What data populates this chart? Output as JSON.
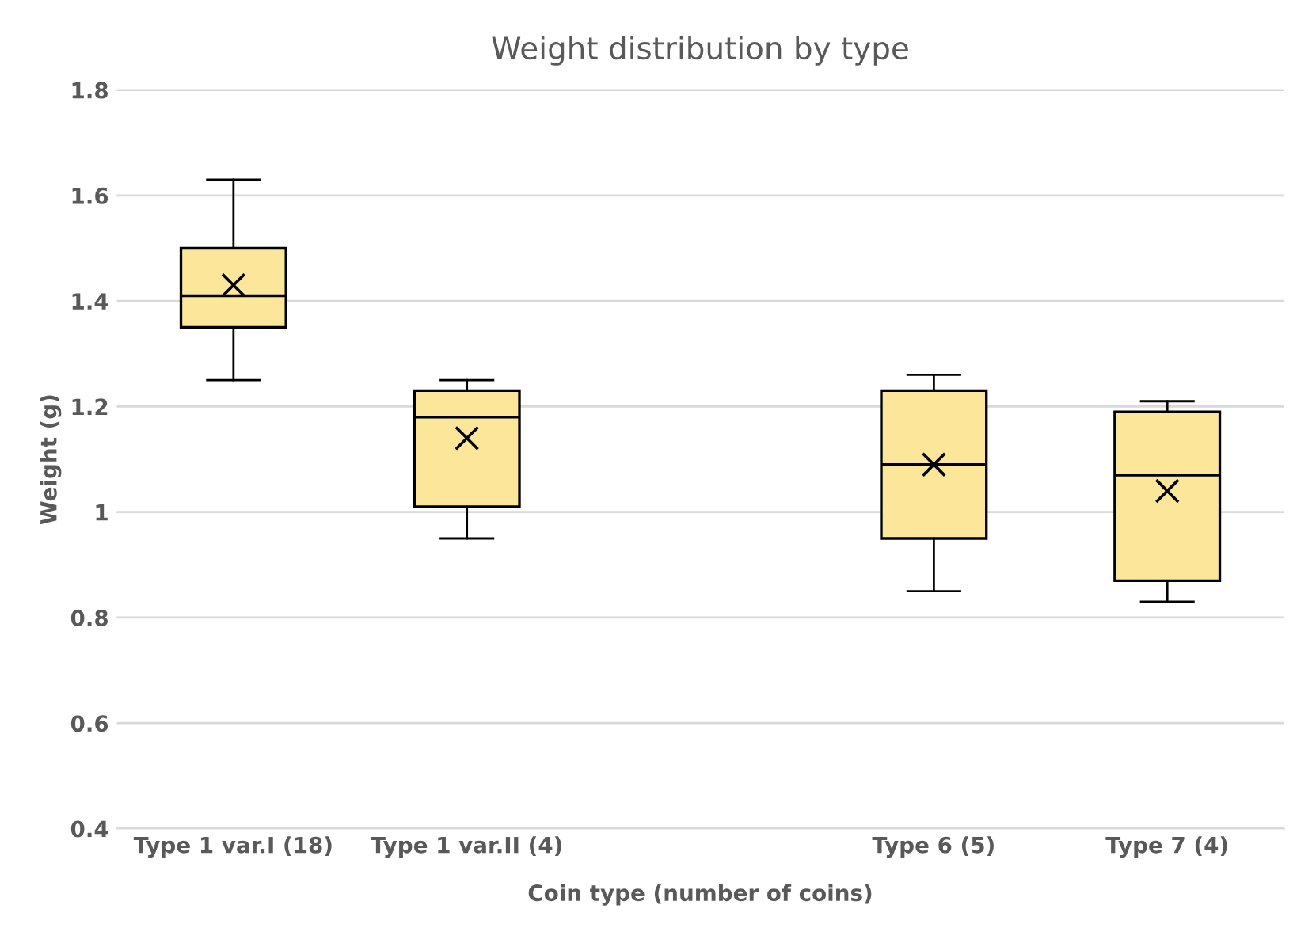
{
  "chart_data": {
    "type": "box",
    "title": "Weight distribution by type",
    "xlabel": "Coin type (number of coins)",
    "ylabel": "Weight (g)",
    "categories": [
      "Type 1 var.I (18)",
      "Type 1 var.II (4)",
      null,
      "Type 6 (5)",
      "Type 7 (4)"
    ],
    "series": [
      {
        "color": "#fce69a",
        "boxes": [
          {
            "low": 1.25,
            "q1": 1.35,
            "median": 1.41,
            "q3": 1.5,
            "high": 1.63,
            "mean": 1.43
          },
          {
            "low": 0.95,
            "q1": 1.01,
            "median": 1.18,
            "q3": 1.23,
            "high": 1.25,
            "mean": 1.14
          },
          null,
          {
            "low": 0.85,
            "q1": 0.95,
            "median": 1.09,
            "q3": 1.23,
            "high": 1.26,
            "mean": 1.09
          },
          {
            "low": 0.83,
            "q1": 0.87,
            "median": 1.07,
            "q3": 1.19,
            "high": 1.21,
            "mean": 1.04
          }
        ]
      }
    ],
    "ylim": [
      0.4,
      1.8
    ],
    "yticks": [
      0.4,
      0.6,
      0.8,
      1,
      1.2,
      1.4,
      1.6,
      1.8
    ],
    "grid": "y",
    "legend": false
  }
}
